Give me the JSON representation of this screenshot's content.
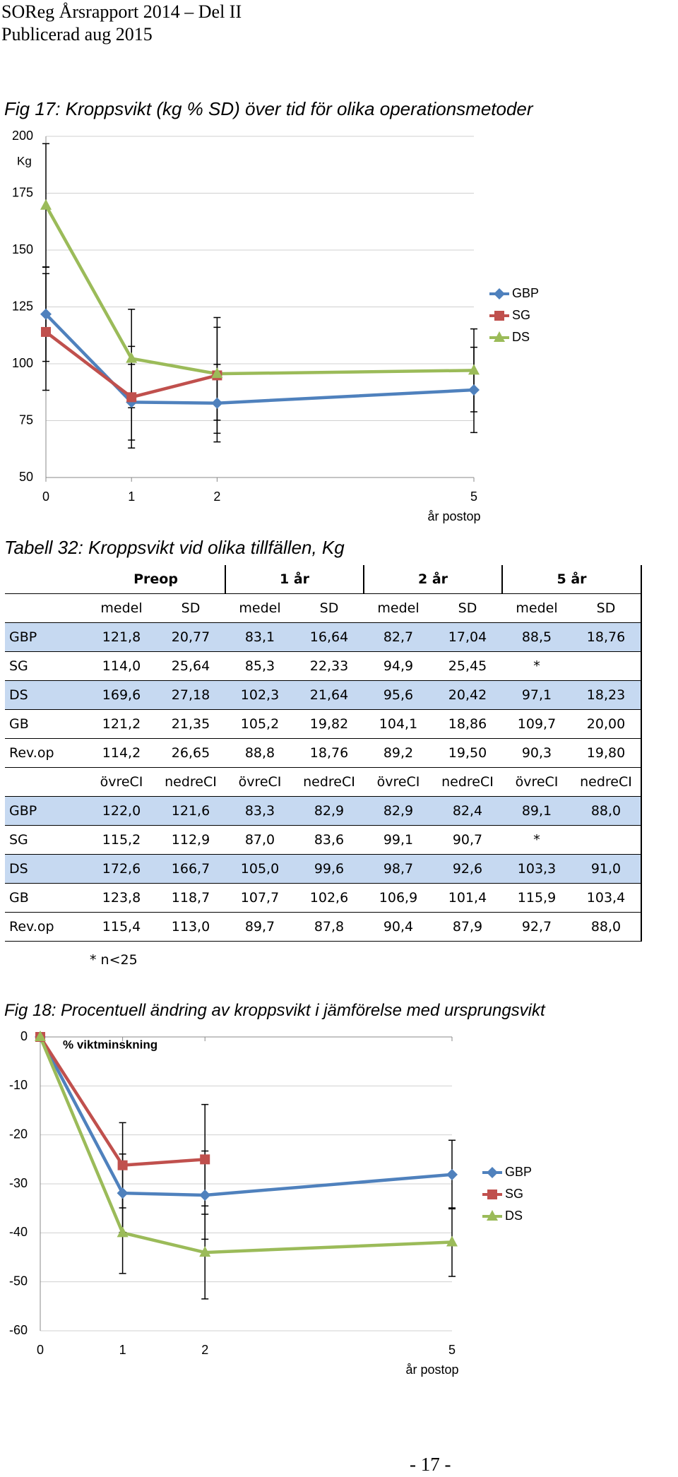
{
  "header": {
    "title": "SOReg Årsrapport 2014 – Del II",
    "subtitle": "Publicerad aug 2015"
  },
  "chart_data": [
    {
      "type": "line",
      "title": "Fig 17: Kroppsvikt (kg % SD) över tid för olika operationsmetoder",
      "y_label": "Kg",
      "x_label": "år postop",
      "x": [
        0,
        1,
        2,
        5
      ],
      "xlim": [
        0,
        5
      ],
      "xticks": [
        0,
        1,
        2,
        5
      ],
      "ylim": [
        50,
        200
      ],
      "yticks": [
        50,
        75,
        100,
        125,
        150,
        175,
        200
      ],
      "grid": true,
      "legend": "right",
      "series": [
        {
          "name": "GBP",
          "color": "#4f81bd",
          "marker": "diamond",
          "values": [
            121.8,
            83.1,
            82.7,
            88.5
          ],
          "errors": [
            20.77,
            16.64,
            17.04,
            18.76
          ]
        },
        {
          "name": "SG",
          "color": "#c0504d",
          "marker": "square",
          "values": [
            114.0,
            85.3,
            94.9,
            null
          ],
          "errors": [
            25.64,
            22.33,
            25.45,
            null
          ]
        },
        {
          "name": "DS",
          "color": "#9bbb59",
          "marker": "triangle",
          "values": [
            169.6,
            102.3,
            95.6,
            97.1
          ],
          "errors": [
            27.18,
            21.64,
            20.42,
            18.23
          ]
        }
      ]
    },
    {
      "type": "line",
      "title": "Fig 18: Procentuell ändring av kroppsvikt i jämförelse med ursprungsvikt",
      "y_label": "% viktminskning",
      "x_label": "år postop",
      "x": [
        0,
        1,
        2,
        5
      ],
      "xlim": [
        0,
        5
      ],
      "xticks": [
        0,
        1,
        2,
        5
      ],
      "ylim": [
        -60,
        0
      ],
      "yticks": [
        -60,
        -50,
        -40,
        -30,
        -20,
        -10,
        0
      ],
      "grid": true,
      "legend": "right",
      "series": [
        {
          "name": "GBP",
          "color": "#4f81bd",
          "marker": "diamond",
          "values": [
            0,
            -31.9,
            -32.3,
            -28.1
          ],
          "errors": [
            null,
            8,
            9,
            7
          ]
        },
        {
          "name": "SG",
          "color": "#c0504d",
          "marker": "square",
          "values": [
            0,
            -26.2,
            -25,
            null
          ],
          "errors": [
            null,
            8.7,
            11.2,
            null
          ]
        },
        {
          "name": "DS",
          "color": "#9bbb59",
          "marker": "triangle",
          "values": [
            0,
            -40,
            -44,
            -41.9
          ],
          "errors": [
            null,
            8.3,
            9.5,
            7
          ]
        }
      ]
    }
  ],
  "table": {
    "title": "Tabell 32: Kroppsvikt vid olika tillfällen, Kg",
    "groups": [
      "Preop",
      "1 år",
      "2 år",
      "5 år"
    ],
    "sub1": [
      "medel",
      "SD",
      "medel",
      "SD",
      "medel",
      "SD",
      "medel",
      "SD"
    ],
    "rows1": [
      [
        "GBP",
        "121,8",
        "20,77",
        "83,1",
        "16,64",
        "82,7",
        "17,04",
        "88,5",
        "18,76"
      ],
      [
        "SG",
        "114,0",
        "25,64",
        "85,3",
        "22,33",
        "94,9",
        "25,45",
        "*"
      ],
      [
        "DS",
        "169,6",
        "27,18",
        "102,3",
        "21,64",
        "95,6",
        "20,42",
        "97,1",
        "18,23"
      ],
      [
        "GB",
        "121,2",
        "21,35",
        "105,2",
        "19,82",
        "104,1",
        "18,86",
        "109,7",
        "20,00"
      ],
      [
        "Rev.op",
        "114,2",
        "26,65",
        "88,8",
        "18,76",
        "89,2",
        "19,50",
        "90,3",
        "19,80"
      ]
    ],
    "sub2": [
      "övreCI",
      "nedreCI",
      "övreCI",
      "nedreCI",
      "övreCI",
      "nedreCI",
      "övreCI",
      "nedreCI"
    ],
    "rows2": [
      [
        "GBP",
        "122,0",
        "121,6",
        "83,3",
        "82,9",
        "82,9",
        "82,4",
        "89,1",
        "88,0"
      ],
      [
        "SG",
        "115,2",
        "112,9",
        "87,0",
        "83,6",
        "99,1",
        "90,7",
        "*"
      ],
      [
        "DS",
        "172,6",
        "166,7",
        "105,0",
        "99,6",
        "98,7",
        "92,6",
        "103,3",
        "91,0"
      ],
      [
        "GB",
        "123,8",
        "118,7",
        "107,7",
        "102,6",
        "106,9",
        "101,4",
        "115,9",
        "103,4"
      ],
      [
        "Rev.op",
        "115,4",
        "113,0",
        "89,7",
        "87,8",
        "90,4",
        "87,9",
        "92,7",
        "88,0"
      ]
    ],
    "note": "* n<25"
  },
  "footer": {
    "page": "- 17 -"
  }
}
